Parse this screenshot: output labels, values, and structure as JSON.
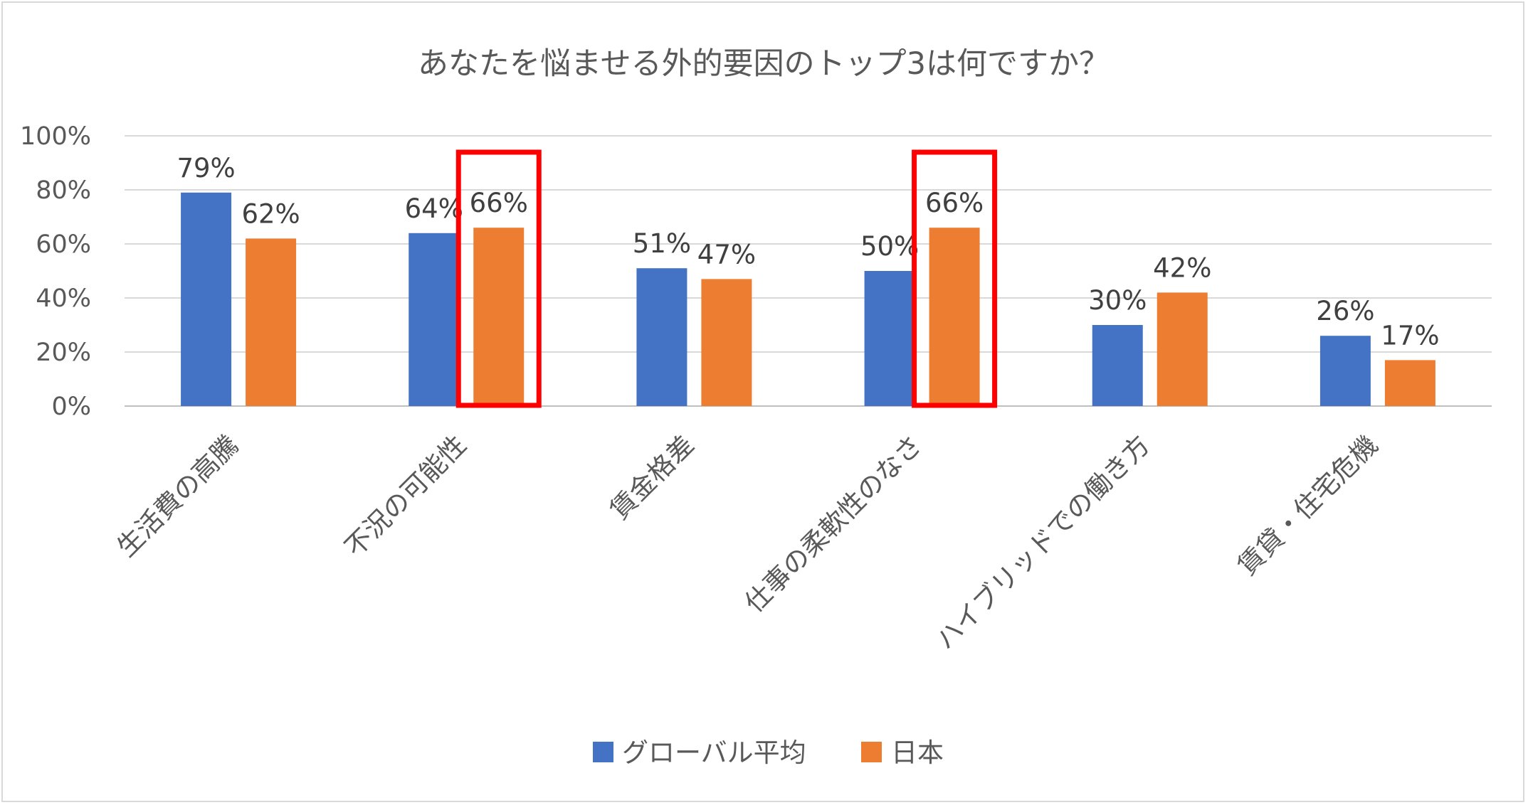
{
  "chart_data": {
    "type": "bar",
    "title": "あなたを悩ませる外的要因のトップ3は何ですか？",
    "categories": [
      "生活費の高騰",
      "不況の可能性",
      "賃金格差",
      "仕事の柔軟性のなさ",
      "ハイブリッドでの働き方",
      "賃貸・住宅危機"
    ],
    "series": [
      {
        "name": "グローバル平均",
        "values": [
          79,
          64,
          51,
          50,
          30,
          26
        ],
        "labels": [
          "79%",
          "64%",
          "51%",
          "50%",
          "30%",
          "26%"
        ],
        "color": "#4472c4"
      },
      {
        "name": "日本",
        "values": [
          62,
          66,
          47,
          66,
          42,
          17
        ],
        "labels": [
          "62%",
          "66%",
          "47%",
          "66%",
          "42%",
          "17%"
        ],
        "color": "#ed7d31"
      }
    ],
    "ylim": [
      0,
      100
    ],
    "yticks": [
      0,
      20,
      40,
      60,
      80,
      100
    ],
    "ytick_labels": [
      "0%",
      "20%",
      "40%",
      "60%",
      "80%",
      "100%"
    ],
    "grid": true,
    "legend_position": "bottom",
    "highlight": {
      "series_index": 1,
      "category_indices": [
        1,
        3
      ],
      "color": "#ff0000"
    }
  }
}
